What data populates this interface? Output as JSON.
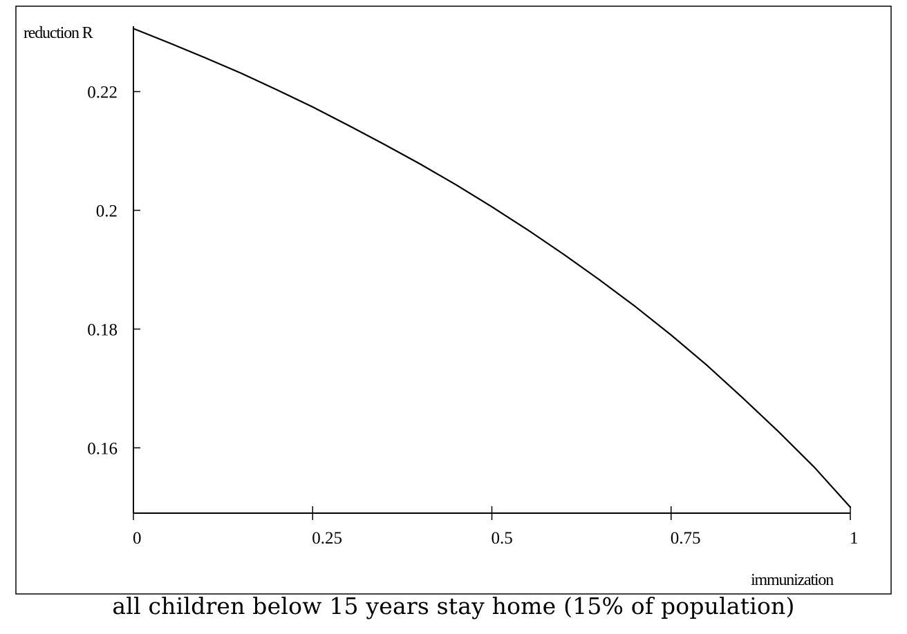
{
  "chart_data": {
    "type": "line",
    "title": "",
    "xlabel": "immunization",
    "ylabel": "reduction R",
    "caption": "all children below 15 years stay home (15% of population)",
    "xlim": [
      0,
      1
    ],
    "ylim": [
      0.149,
      0.231
    ],
    "x_ticks": [
      0,
      0.25,
      0.5,
      0.75,
      1
    ],
    "x_tick_labels": [
      "0",
      "0.25",
      "0.5",
      "0.75",
      "1"
    ],
    "y_ticks": [
      0.16,
      0.18,
      0.2,
      0.22
    ],
    "y_tick_labels": [
      "0.16",
      "0.18",
      "0.2",
      "0.22"
    ],
    "grid": false,
    "legend": "none",
    "line_color": "#000000",
    "series": [
      {
        "x": [
          0,
          0.05,
          0.1,
          0.15,
          0.2,
          0.25,
          0.3,
          0.35,
          0.4,
          0.45,
          0.5,
          0.55,
          0.6,
          0.65,
          0.7,
          0.75,
          0.8,
          0.85,
          0.9,
          0.95,
          1
        ],
        "values": [
          0.2306,
          0.2282,
          0.2257,
          0.2231,
          0.2203,
          0.2174,
          0.2143,
          0.2111,
          0.2078,
          0.2043,
          0.2006,
          0.1967,
          0.1926,
          0.1883,
          0.1838,
          0.179,
          0.1739,
          0.1684,
          0.1627,
          0.1567,
          0.15
        ]
      }
    ]
  }
}
